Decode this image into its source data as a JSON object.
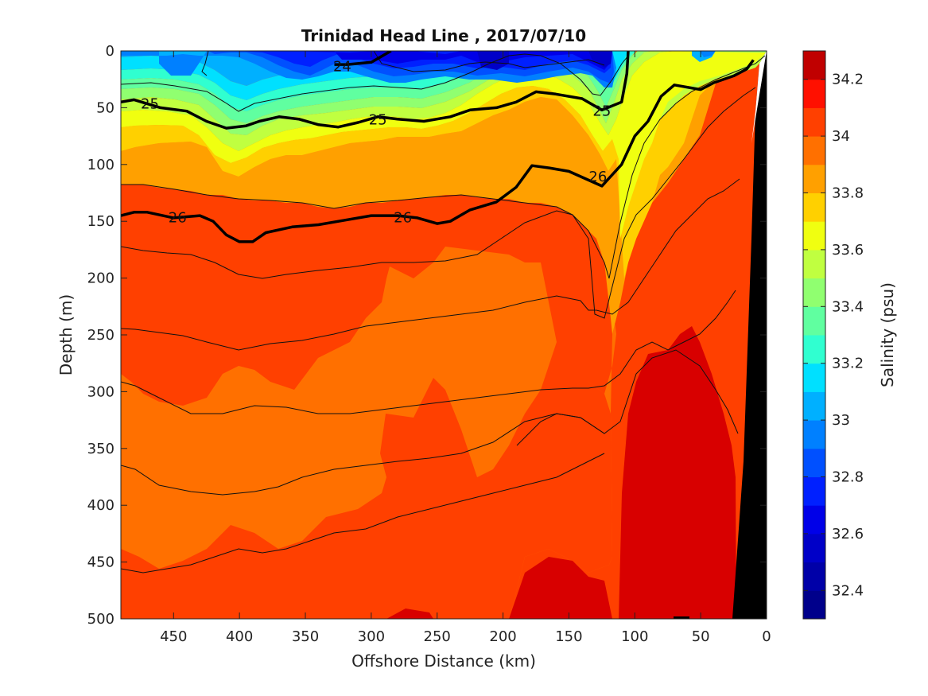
{
  "chart_data": {
    "type": "contour",
    "title": "Trinidad Head Line , 2017/07/10",
    "xlabel": "Offshore Distance (km)",
    "ylabel": "Depth (m)",
    "colorbar_label": "Salinity (psu)",
    "xlim": [
      490,
      0
    ],
    "ylim": [
      0,
      500
    ],
    "x_ticks": [
      450,
      400,
      350,
      300,
      250,
      200,
      150,
      100,
      50,
      0
    ],
    "y_ticks": [
      0,
      50,
      100,
      150,
      200,
      250,
      300,
      350,
      400,
      450,
      500
    ],
    "colorbar_ticks": [
      32.4,
      32.6,
      32.8,
      33,
      33.2,
      33.4,
      33.6,
      33.8,
      34,
      34.2
    ],
    "colorbar_range": [
      32.3,
      34.3
    ],
    "colorbar_levels": [
      {
        "from": 32.3,
        "to": 32.4,
        "color": "#00008b"
      },
      {
        "from": 32.4,
        "to": 32.5,
        "color": "#0000a8"
      },
      {
        "from": 32.5,
        "to": 32.6,
        "color": "#0000c8"
      },
      {
        "from": 32.6,
        "to": 32.7,
        "color": "#0000e8"
      },
      {
        "from": 32.7,
        "to": 32.8,
        "color": "#0020ff"
      },
      {
        "from": 32.8,
        "to": 32.9,
        "color": "#0050ff"
      },
      {
        "from": 32.9,
        "to": 33.0,
        "color": "#0080ff"
      },
      {
        "from": 33.0,
        "to": 33.1,
        "color": "#00b0ff"
      },
      {
        "from": 33.1,
        "to": 33.2,
        "color": "#00e0ff"
      },
      {
        "from": 33.2,
        "to": 33.3,
        "color": "#30ffd0"
      },
      {
        "from": 33.3,
        "to": 33.4,
        "color": "#60ffa0"
      },
      {
        "from": 33.4,
        "to": 33.5,
        "color": "#90ff70"
      },
      {
        "from": 33.5,
        "to": 33.6,
        "color": "#c0ff40"
      },
      {
        "from": 33.6,
        "to": 33.7,
        "color": "#f0ff10"
      },
      {
        "from": 33.7,
        "to": 33.8,
        "color": "#ffd000"
      },
      {
        "from": 33.8,
        "to": 33.9,
        "color": "#ffa000"
      },
      {
        "from": 33.9,
        "to": 34.0,
        "color": "#ff7000"
      },
      {
        "from": 34.0,
        "to": 34.1,
        "color": "#ff4000"
      },
      {
        "from": 34.1,
        "to": 34.2,
        "color": "#ff1000"
      },
      {
        "from": 34.2,
        "to": 34.3,
        "color": "#c00000"
      }
    ],
    "density_contours": [
      {
        "label": "24",
        "points": [
          [
            328,
            12
          ],
          [
            318,
            12
          ],
          [
            300,
            10
          ],
          [
            285,
            0
          ]
        ]
      },
      {
        "label": "25",
        "points": [
          [
            490,
            45
          ],
          [
            480,
            43
          ],
          [
            460,
            50
          ],
          [
            440,
            53
          ],
          [
            425,
            62
          ],
          [
            410,
            68
          ],
          [
            395,
            66
          ],
          [
            385,
            62
          ],
          [
            370,
            58
          ],
          [
            355,
            60
          ],
          [
            340,
            65
          ],
          [
            325,
            67
          ],
          [
            310,
            63
          ],
          [
            295,
            58
          ],
          [
            280,
            60
          ],
          [
            260,
            62
          ],
          [
            240,
            58
          ],
          [
            225,
            52
          ],
          [
            205,
            50
          ],
          [
            190,
            45
          ],
          [
            175,
            36
          ],
          [
            160,
            38
          ],
          [
            140,
            42
          ],
          [
            125,
            52
          ],
          [
            110,
            45
          ],
          [
            106,
            20
          ],
          [
            105,
            0
          ]
        ]
      },
      {
        "label": "26",
        "points": [
          [
            490,
            145
          ],
          [
            480,
            142
          ],
          [
            470,
            142
          ],
          [
            450,
            147
          ],
          [
            430,
            145
          ],
          [
            420,
            150
          ],
          [
            410,
            162
          ],
          [
            400,
            168
          ],
          [
            390,
            168
          ],
          [
            380,
            160
          ],
          [
            360,
            155
          ],
          [
            340,
            153
          ],
          [
            320,
            149
          ],
          [
            300,
            145
          ],
          [
            280,
            145
          ],
          [
            265,
            147
          ],
          [
            250,
            152
          ],
          [
            240,
            150
          ],
          [
            225,
            140
          ],
          [
            205,
            133
          ],
          [
            190,
            120
          ],
          [
            178,
            101
          ],
          [
            165,
            103
          ],
          [
            150,
            106
          ],
          [
            125,
            119
          ],
          [
            110,
            100
          ],
          [
            100,
            75
          ],
          [
            90,
            62
          ],
          [
            80,
            40
          ],
          [
            70,
            30
          ],
          [
            50,
            34
          ],
          [
            40,
            28
          ],
          [
            25,
            22
          ],
          [
            15,
            16
          ],
          [
            10,
            8
          ]
        ]
      }
    ],
    "annotations": [
      "24",
      "25",
      "25",
      "25",
      "26",
      "26",
      "26"
    ]
  }
}
